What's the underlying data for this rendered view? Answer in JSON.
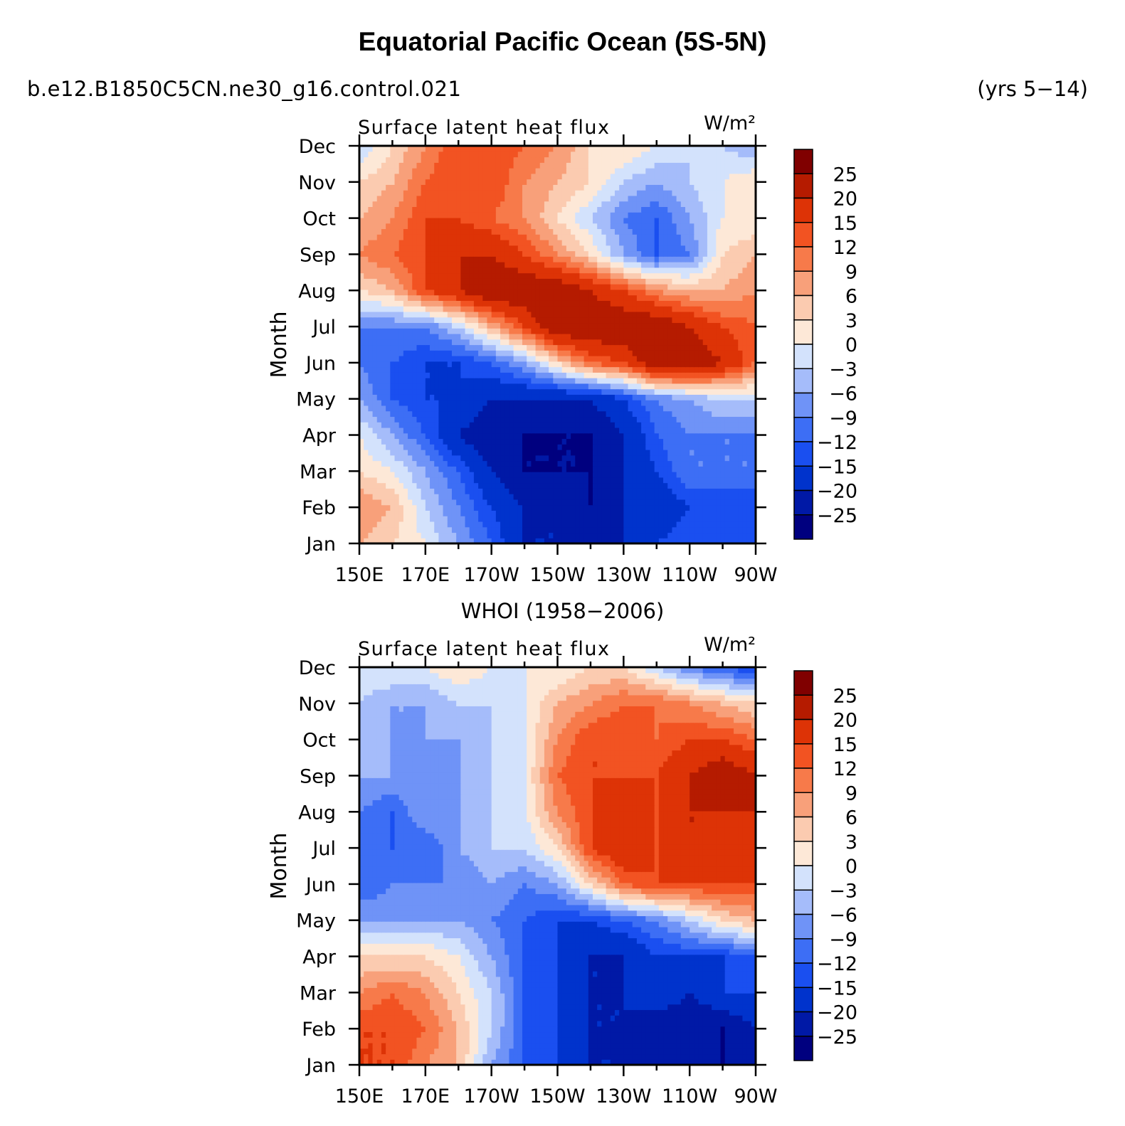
{
  "title": "Equatorial Pacific Ocean (5S-5N)",
  "case_name": "b.e12.B1850C5CN.ne30_g16.control.021",
  "years": "(yrs 5−14)",
  "colors": [
    "#00007f",
    "#0019a6",
    "#0033cc",
    "#1a4ff0",
    "#3d6ef5",
    "#6f93f7",
    "#a5bcfa",
    "#d3e2fc",
    "#fde8d7",
    "#fbcbb0",
    "#f8a07a",
    "#f77a4a",
    "#f25322",
    "#dd3306",
    "#b51b00",
    "#800000"
  ],
  "colorbar_labels": [
    "25",
    "20",
    "15",
    "12",
    "9",
    "6",
    "3",
    "0",
    "−3",
    "−6",
    "−9",
    "−12",
    "−15",
    "−20",
    "−25"
  ],
  "chart_data": [
    {
      "type": "heatmap",
      "name": "model",
      "subtitle": "Surface latent heat flux",
      "units": "W/m²",
      "xlabel": "",
      "ylabel": "Month",
      "xticks": [
        "150E",
        "170E",
        "170W",
        "150W",
        "130W",
        "110W",
        "90W"
      ],
      "x_lon": [
        150,
        160,
        170,
        180,
        190,
        200,
        210,
        220,
        230,
        240,
        250,
        260,
        270
      ],
      "months": [
        "Jan",
        "Feb",
        "Mar",
        "Apr",
        "May",
        "Jun",
        "Jul",
        "Aug",
        "Sep",
        "Oct",
        "Nov",
        "Dec"
      ],
      "levels": [
        -25,
        -20,
        -15,
        -12,
        -9,
        -6,
        -3,
        0,
        3,
        6,
        9,
        12,
        15,
        20,
        25
      ],
      "z": [
        [
          6,
          3,
          0,
          -6,
          -12,
          -20,
          -20,
          -20,
          -20,
          -15,
          -12,
          -12,
          -15
        ],
        [
          9,
          6,
          -3,
          -9,
          -15,
          -20,
          -20,
          -25,
          -20,
          -20,
          -15,
          -15,
          -15
        ],
        [
          3,
          0,
          -6,
          -12,
          -20,
          -25,
          -25,
          -25,
          -20,
          -15,
          -9,
          -9,
          -9
        ],
        [
          0,
          -6,
          -12,
          -20,
          -25,
          -25,
          -25,
          -25,
          -20,
          -12,
          -9,
          -9,
          -9
        ],
        [
          -6,
          -12,
          -15,
          -15,
          -20,
          -20,
          -20,
          -20,
          -15,
          -9,
          -6,
          -3,
          -3
        ],
        [
          -9,
          -12,
          -15,
          -15,
          -12,
          -6,
          3,
          12,
          15,
          25,
          25,
          20,
          12
        ],
        [
          -9,
          -9,
          -9,
          -3,
          6,
          15,
          25,
          25,
          25,
          25,
          20,
          15,
          12
        ],
        [
          3,
          6,
          15,
          20,
          25,
          25,
          25,
          20,
          15,
          9,
          6,
          6,
          9
        ],
        [
          9,
          12,
          15,
          20,
          20,
          15,
          9,
          3,
          -6,
          -12,
          -9,
          3,
          6
        ],
        [
          6,
          9,
          15,
          15,
          12,
          9,
          3,
          -3,
          -9,
          -12,
          -6,
          0,
          0
        ],
        [
          3,
          6,
          12,
          15,
          15,
          9,
          6,
          3,
          -3,
          -6,
          -3,
          0,
          3
        ],
        [
          -3,
          3,
          9,
          15,
          15,
          12,
          9,
          3,
          3,
          0,
          -3,
          -3,
          -6
        ]
      ]
    },
    {
      "type": "heatmap",
      "name": "obs",
      "dataset_title": "WHOI (1958−2006)",
      "subtitle": "Surface latent heat flux",
      "units": "W/m²",
      "xlabel": "",
      "ylabel": "Month",
      "xticks": [
        "150E",
        "170E",
        "170W",
        "150W",
        "130W",
        "110W",
        "90W"
      ],
      "x_lon": [
        150,
        160,
        170,
        180,
        190,
        200,
        210,
        220,
        230,
        240,
        250,
        260,
        270
      ],
      "months": [
        "Jan",
        "Feb",
        "Mar",
        "Apr",
        "May",
        "Jun",
        "Jul",
        "Aug",
        "Sep",
        "Oct",
        "Nov",
        "Dec"
      ],
      "levels": [
        -25,
        -20,
        -15,
        -12,
        -9,
        -6,
        -3,
        0,
        3,
        6,
        9,
        12,
        15,
        20,
        25
      ],
      "z": [
        [
          15,
          15,
          9,
          6,
          -6,
          -12,
          -15,
          -20,
          -20,
          -20,
          -20,
          -25,
          -25
        ],
        [
          15,
          15,
          12,
          6,
          -3,
          -12,
          -15,
          -20,
          -20,
          -25,
          -25,
          -25,
          -20
        ],
        [
          9,
          12,
          9,
          3,
          -3,
          -12,
          -15,
          -20,
          -20,
          -15,
          -20,
          -15,
          -15
        ],
        [
          3,
          3,
          3,
          0,
          -6,
          -12,
          -15,
          -20,
          -20,
          -15,
          -15,
          -15,
          -12
        ],
        [
          -6,
          -6,
          -6,
          -6,
          -9,
          -12,
          -15,
          -15,
          -12,
          -9,
          -3,
          3,
          6
        ],
        [
          -12,
          -9,
          -9,
          -9,
          -6,
          -9,
          -6,
          3,
          12,
          15,
          15,
          15,
          15
        ],
        [
          -12,
          -12,
          -12,
          -6,
          -3,
          -3,
          3,
          15,
          20,
          15,
          20,
          20,
          20
        ],
        [
          -9,
          -12,
          -6,
          -6,
          -3,
          0,
          9,
          15,
          20,
          15,
          20,
          20,
          20
        ],
        [
          -6,
          -6,
          -6,
          -6,
          -3,
          0,
          12,
          15,
          15,
          15,
          20,
          25,
          20
        ],
        [
          -3,
          -6,
          -6,
          -6,
          -3,
          0,
          9,
          15,
          15,
          12,
          15,
          15,
          12
        ],
        [
          -3,
          -6,
          -6,
          -3,
          -3,
          0,
          6,
          9,
          12,
          12,
          9,
          6,
          3
        ],
        [
          0,
          0,
          0,
          3,
          0,
          0,
          0,
          3,
          3,
          -3,
          -9,
          -12,
          -15
        ]
      ]
    }
  ]
}
